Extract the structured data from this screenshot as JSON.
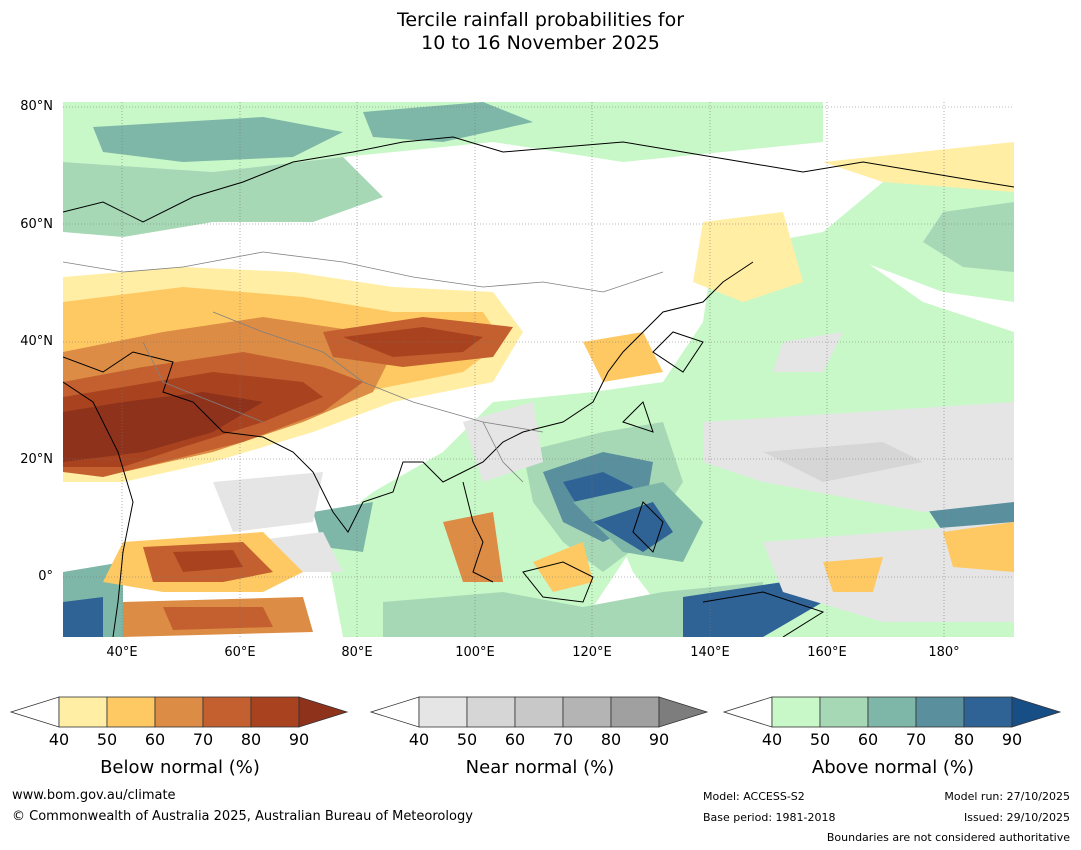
{
  "title": {
    "line1": "Tercile rainfall probabilities for",
    "line2": "10 to 16 November 2025"
  },
  "axes": {
    "lat_labels": [
      "80°N",
      "60°N",
      "40°N",
      "20°N",
      "0°"
    ],
    "lon_labels": [
      "40°E",
      "60°E",
      "80°E",
      "100°E",
      "120°E",
      "140°E",
      "160°E",
      "180°"
    ]
  },
  "colors": {
    "below": [
      "#ffffff",
      "#ffeea3",
      "#fec962",
      "#dc8c44",
      "#c4602f",
      "#a9431f",
      "#8e321c"
    ],
    "near": [
      "#ffffff",
      "#e5e5e5",
      "#d6d6d6",
      "#c8c8c8",
      "#b4b4b4",
      "#a0a0a0",
      "#7d7d7d"
    ],
    "above": [
      "#ffffff",
      "#c8f8c8",
      "#a6d8b6",
      "#7eb7a8",
      "#5a8f9e",
      "#2f6396",
      "#174e86"
    ],
    "ocean_land_bg": "#ffffff",
    "coast": "#000000",
    "border": "#808080"
  },
  "legends": [
    {
      "caption": "Below normal (%)",
      "ticks": [
        "40",
        "50",
        "60",
        "70",
        "80",
        "90"
      ]
    },
    {
      "caption": "Near normal (%)",
      "ticks": [
        "40",
        "50",
        "60",
        "70",
        "80",
        "90"
      ]
    },
    {
      "caption": "Above normal (%)",
      "ticks": [
        "40",
        "50",
        "60",
        "70",
        "80",
        "90"
      ]
    }
  ],
  "footer": {
    "website": "www.bom.gov.au/climate",
    "copyright": "© Commonwealth of Australia 2025, Australian Bureau of Meteorology",
    "model": "Model: ACCESS-S2",
    "base_period": "Base period: 1981-2018",
    "model_run": "Model run: 27/10/2025",
    "issued": "Issued: 29/10/2025",
    "disclaimer": "Boundaries are not considered authoritative"
  }
}
